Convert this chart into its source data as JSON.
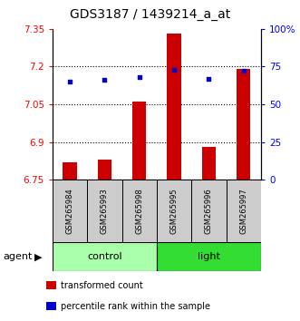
{
  "title": "GDS3187 / 1439214_a_at",
  "samples": [
    "GSM265984",
    "GSM265993",
    "GSM265998",
    "GSM265995",
    "GSM265996",
    "GSM265997"
  ],
  "bar_values": [
    6.82,
    6.83,
    7.06,
    7.33,
    6.88,
    7.19
  ],
  "bar_baseline": 6.75,
  "percentile_values": [
    65,
    66,
    68,
    73,
    67,
    72
  ],
  "ylim_left": [
    6.75,
    7.35
  ],
  "ylim_right": [
    0,
    100
  ],
  "yticks_left": [
    6.75,
    6.9,
    7.05,
    7.2,
    7.35
  ],
  "yticks_right": [
    0,
    25,
    50,
    75,
    100
  ],
  "ytick_labels_right": [
    "0",
    "25",
    "50",
    "75",
    "100%"
  ],
  "ytick_labels_left": [
    "6.75",
    "6.9",
    "7.05",
    "7.2",
    "7.35"
  ],
  "groups": [
    {
      "name": "control",
      "indices": [
        0,
        1,
        2
      ],
      "color": "#aaffaa"
    },
    {
      "name": "light",
      "indices": [
        3,
        4,
        5
      ],
      "color": "#33dd33"
    }
  ],
  "bar_color": "#cc0000",
  "dot_color": "#0000cc",
  "bar_width": 0.4,
  "sample_box_color": "#cccccc",
  "agent_label": "agent",
  "legend_items": [
    {
      "label": "transformed count",
      "color": "#cc0000"
    },
    {
      "label": "percentile rank within the sample",
      "color": "#0000cc"
    }
  ],
  "title_fontsize": 10,
  "tick_fontsize": 7.5,
  "sample_fontsize": 6,
  "group_fontsize": 8,
  "legend_fontsize": 7
}
